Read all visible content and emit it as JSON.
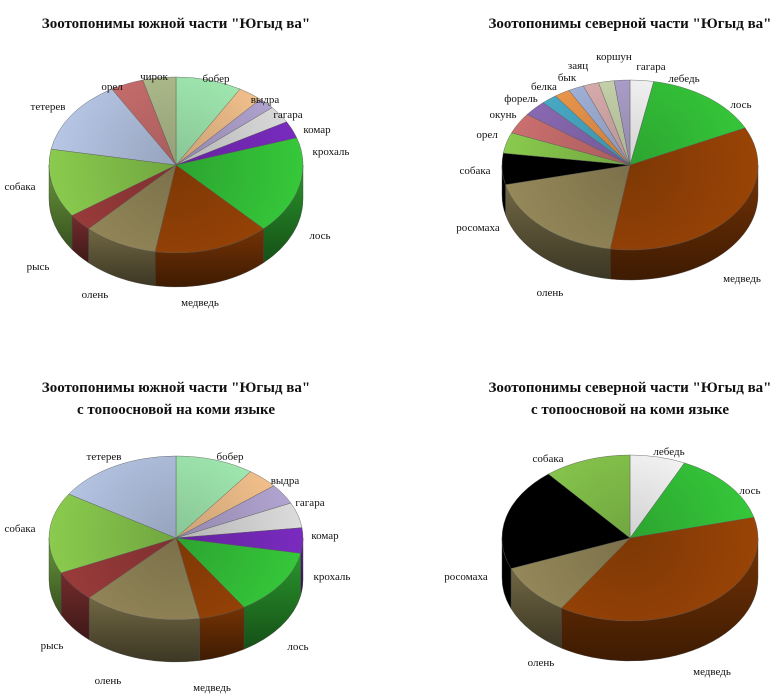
{
  "colors": {
    "бобер": "#a6f0b6",
    "выдра": "#f7c48f",
    "гагара": "#b3a6d3",
    "комар": "#dcdcdc",
    "крохаль": "#7a2bbf",
    "лось": "#36c83a",
    "медведь": "#9a4406",
    "олень": "#96895a",
    "рысь": "#9b3b3b",
    "собака": "#8acb4e",
    "тетерев": "#b7c7e6",
    "орел": "#cd7070",
    "чирок": "#b4c290",
    "росомаха": "#000000",
    "окунь": "#8c6bb6",
    "форель": "#4aaecb",
    "белка": "#f29a4d",
    "бык": "#a7b7e0",
    "заяц": "#e1b3b3",
    "коршун": "#cfdcb3",
    "лебедь": "#ffffff"
  },
  "chart_data": [
    {
      "type": "pie",
      "title": "Зоотопонимы южной части \"Югыд ва\"",
      "subtitle": "",
      "categories": [
        "бобер",
        "выдра",
        "гагара",
        "комар",
        "крохаль",
        "лось",
        "медведь",
        "олень",
        "рысь",
        "собака",
        "тетерев",
        "орел",
        "чирок"
      ],
      "values": [
        8,
        3,
        2,
        3,
        3,
        17,
        14,
        9,
        3,
        12,
        13,
        4,
        4
      ]
    },
    {
      "type": "pie",
      "title": "Зоотопонимы северной части \"Югыд ва\"",
      "subtitle": "",
      "categories": [
        "лебедь",
        "лось",
        "медведь",
        "олень",
        "росомаха",
        "собака",
        "орел",
        "окунь",
        "форель",
        "белка",
        "бык",
        "заяц",
        "коршун",
        "гагара"
      ],
      "values": [
        3,
        15,
        35,
        19,
        6,
        4,
        4,
        3,
        2,
        2,
        2,
        2,
        2,
        2
      ]
    },
    {
      "type": "pie",
      "title": "Зоотопонимы южной части \"Югыд ва\"",
      "subtitle": "с топоосновой на коми языке",
      "categories": [
        "бобер",
        "выдра",
        "гагара",
        "комар",
        "крохаль",
        "лось",
        "медведь",
        "олень",
        "рысь",
        "собака",
        "тетерев"
      ],
      "values": [
        10,
        4,
        4,
        5,
        5,
        13,
        6,
        15,
        6,
        16,
        16
      ]
    },
    {
      "type": "pie",
      "title": "Зоотопонимы северной части \"Югыд ва\"",
      "subtitle": "с топоосновой на коми языке",
      "categories": [
        "лебедь",
        "лось",
        "медведь",
        "олень",
        "росомаха",
        "собака"
      ],
      "values": [
        7,
        14,
        38,
        10,
        20,
        11
      ]
    }
  ]
}
